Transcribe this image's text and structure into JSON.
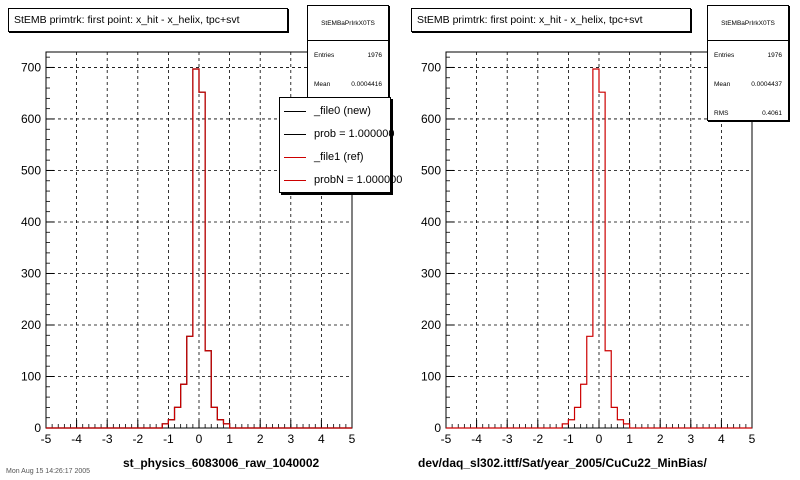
{
  "chart_data": [
    {
      "type": "step",
      "title": "StEMB primtrk: first point: x_hit - x_helix, tpc+svt",
      "xlim": [
        -5,
        5
      ],
      "ylim": [
        0,
        730
      ],
      "xticks": [
        "-5",
        "-4",
        "-3",
        "-2",
        "-1",
        "0",
        "1",
        "2",
        "3",
        "4",
        "5"
      ],
      "yticks": [
        "0",
        "100",
        "200",
        "300",
        "400",
        "500",
        "600",
        "700"
      ],
      "xlabel": "st_physics_6083006_raw_1040002",
      "grid": true,
      "bin_edges": [
        -1.2,
        -1.0,
        -0.8,
        -0.6,
        -0.4,
        -0.2,
        0.0,
        0.2,
        0.4,
        0.6,
        0.8,
        1.0
      ],
      "series": [
        {
          "name": "_file0 (new)",
          "color": "#000000",
          "values": [
            8,
            16,
            40,
            85,
            178,
            697,
            652,
            150,
            40,
            16,
            8
          ]
        },
        {
          "name": "_file1 (ref)",
          "color": "#cc0000",
          "values": [
            8,
            16,
            40,
            85,
            178,
            697,
            652,
            150,
            40,
            16,
            8
          ]
        }
      ],
      "stats": {
        "name": "StEMBaPrIrkX0TS",
        "entries_label": "Entries",
        "entries": "1976",
        "mean_label": "Mean",
        "mean": "0.0004416"
      },
      "legend": {
        "position": "top-right",
        "entries": [
          {
            "label": "_file0 (new)",
            "color": "#000000"
          },
          {
            "label": "prob = 1.000000",
            "color": "#000000"
          },
          {
            "label": "_file1 (ref)",
            "color": "#cc0000"
          },
          {
            "label": "probN = 1.000000",
            "color": "#cc0000"
          }
        ]
      }
    },
    {
      "type": "step",
      "title": "StEMB primtrk: first point: x_hit - x_helix, tpc+svt",
      "xlim": [
        -5,
        5
      ],
      "ylim": [
        0,
        730
      ],
      "xticks": [
        "-5",
        "-4",
        "-3",
        "-2",
        "-1",
        "0",
        "1",
        "2",
        "3",
        "4",
        "5"
      ],
      "yticks": [
        "0",
        "100",
        "200",
        "300",
        "400",
        "500",
        "600",
        "700"
      ],
      "xlabel": "dev/daq_sl302.ittf/Sat/year_2005/CuCu22_MinBias/",
      "grid": true,
      "bin_edges": [
        -1.2,
        -1.0,
        -0.8,
        -0.6,
        -0.4,
        -0.2,
        0.0,
        0.2,
        0.4,
        0.6,
        0.8,
        1.0
      ],
      "series": [
        {
          "name": "",
          "color": "#cc0000",
          "values": [
            8,
            16,
            40,
            85,
            178,
            697,
            652,
            150,
            40,
            16,
            8
          ]
        }
      ],
      "stats": {
        "name": "StEMBaPrIrkX0TS",
        "entries_label": "Entries",
        "entries": "1976",
        "mean_label": "Mean",
        "mean": "0.0004437",
        "rms_label": "RMS",
        "rms": "0.4061"
      }
    }
  ],
  "footer": {
    "timestamp": "Mon Aug 15 14:26:17 2005"
  }
}
